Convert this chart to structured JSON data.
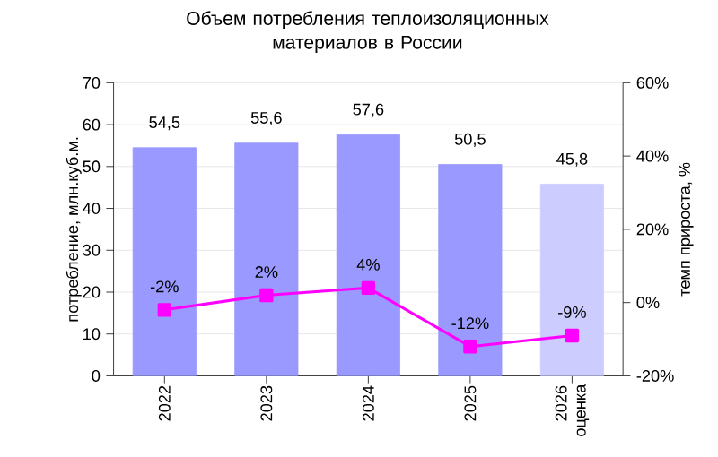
{
  "chart_data": {
    "type": "bar",
    "title": "Объем потребления теплоизоляционных материалов в России",
    "categories": [
      "2022",
      "2023",
      "2024",
      "2025",
      "2026 оценка"
    ],
    "series": [
      {
        "colors": [
          "#9999ff",
          "#9999ff",
          "#9999ff",
          "#9999ff",
          "#ccccff"
        ],
        "values": [
          54.5,
          55.6,
          57.6,
          50.5,
          45.8
        ],
        "value_labels": [
          "54,5",
          "55,6",
          "57,6",
          "50,5",
          "45,8"
        ]
      },
      {
        "type": "line",
        "axis": "y2",
        "color": "#ff00ff",
        "values": [
          -2,
          2,
          4,
          -12,
          -9
        ],
        "value_labels": [
          "-2%",
          "2%",
          "4%",
          "-12%",
          "-9%"
        ]
      }
    ],
    "ylabel": "потребление, млн.куб.м.",
    "y2label": "темп прироста, %",
    "ylim": [
      0,
      70
    ],
    "yticks": [
      0,
      10,
      20,
      30,
      40,
      50,
      60,
      70
    ],
    "y2lim": [
      -20,
      60
    ],
    "y2ticks": [
      {
        "value": -20,
        "label": "-20%"
      },
      {
        "value": 0,
        "label": "0%"
      },
      {
        "value": 20,
        "label": "20%"
      },
      {
        "value": 40,
        "label": "40%"
      },
      {
        "value": 60,
        "label": "60%"
      }
    ],
    "grid": "y",
    "marker": "square",
    "line_style": "solid"
  }
}
